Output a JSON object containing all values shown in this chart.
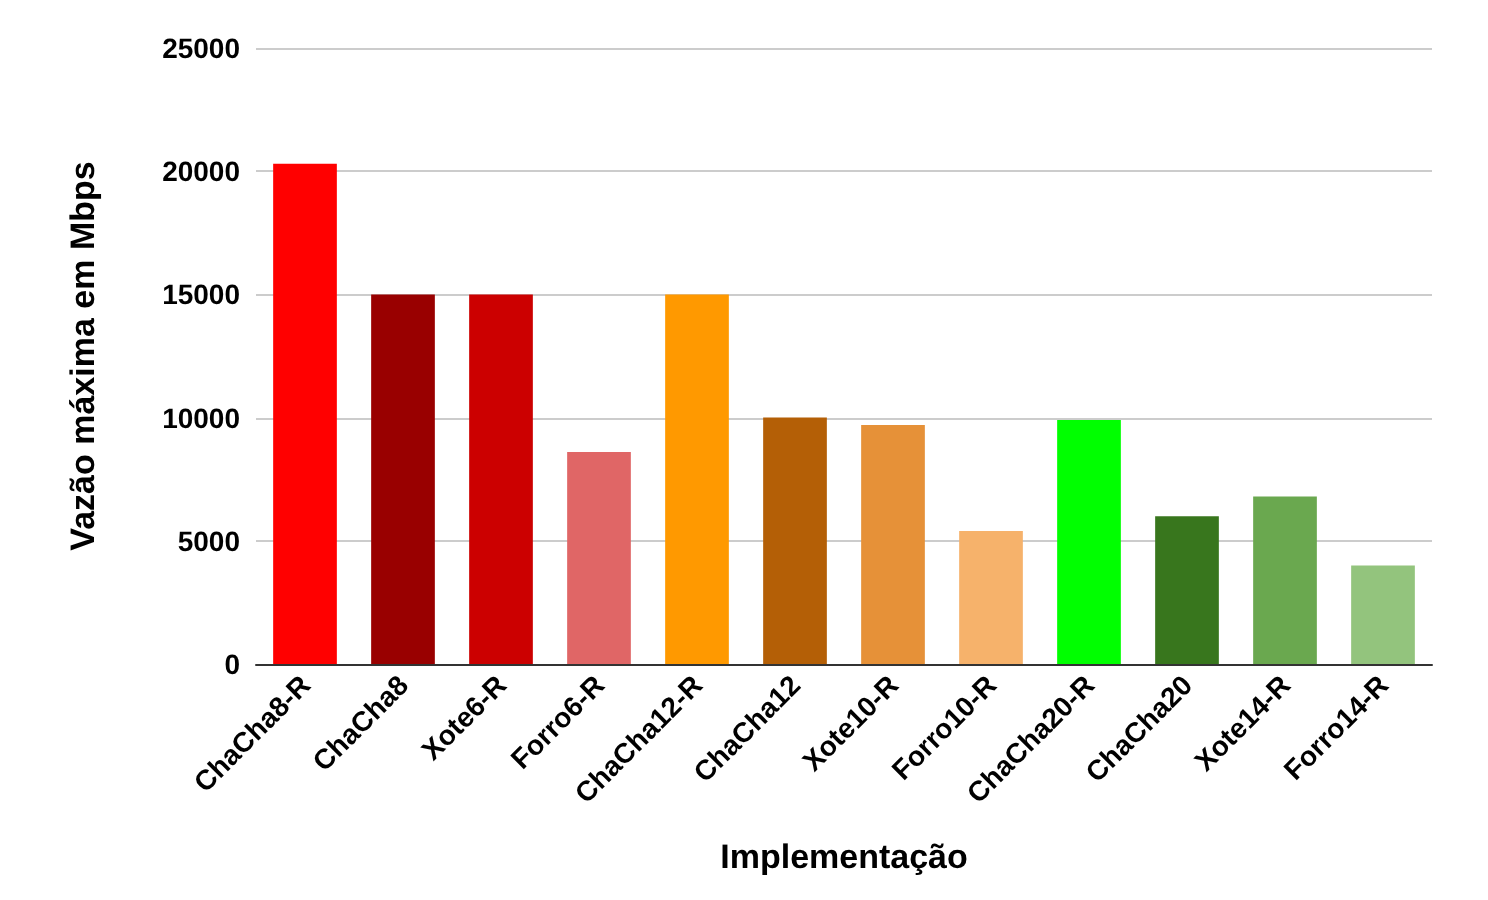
{
  "chart_data": {
    "type": "bar",
    "xlabel": "Implementação",
    "ylabel": "Vazão máxima em Mbps",
    "categories": [
      "ChaCha8-R",
      "ChaCha8",
      "Xote6-R",
      "Forro6-R",
      "ChaCha12-R",
      "ChaCha12",
      "Xote10-R",
      "Forro10-R",
      "ChaCha20-R",
      "ChaCha20",
      "Xote14-R",
      "Forro14-R"
    ],
    "values": [
      20300,
      15000,
      15000,
      8600,
      15000,
      10000,
      9700,
      5400,
      9900,
      6000,
      6800,
      4000
    ],
    "colors": [
      "#ff0000",
      "#990000",
      "#cc0000",
      "#e06666",
      "#ff9900",
      "#b45f06",
      "#e69138",
      "#f6b26b",
      "#00ff00",
      "#38761d",
      "#6aa84f",
      "#93c47d"
    ],
    "ylim": [
      0,
      25000
    ],
    "yticks": [
      0,
      5000,
      10000,
      15000,
      20000,
      25000
    ],
    "grid": "y"
  }
}
